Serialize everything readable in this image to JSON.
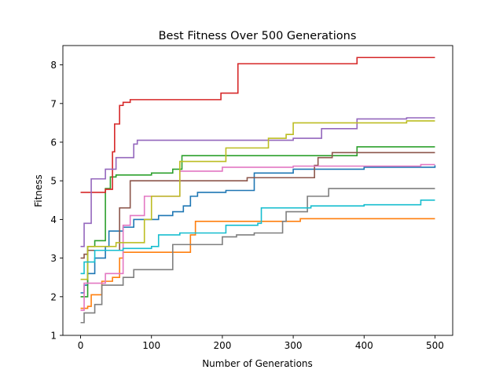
{
  "chart_data": {
    "type": "line",
    "title": "Best Fitness Over 500 Generations",
    "xlabel": "Number of Generations",
    "ylabel": "Fitness",
    "xlim": [
      -25,
      525
    ],
    "ylim": [
      1,
      8.5
    ],
    "xticks": [
      0,
      100,
      200,
      300,
      400,
      500
    ],
    "yticks": [
      1,
      2,
      3,
      4,
      5,
      6,
      7,
      8
    ],
    "grid": false,
    "legend": "none",
    "step": "post",
    "series": [
      {
        "color": "#1f77b4",
        "points": [
          [
            0,
            2.1
          ],
          [
            5,
            2.3
          ],
          [
            10,
            2.6
          ],
          [
            20,
            3.0
          ],
          [
            35,
            3.3
          ],
          [
            40,
            3.7
          ],
          [
            60,
            3.8
          ],
          [
            75,
            4.0
          ],
          [
            110,
            4.1
          ],
          [
            130,
            4.2
          ],
          [
            145,
            4.35
          ],
          [
            155,
            4.6
          ],
          [
            165,
            4.7
          ],
          [
            205,
            4.75
          ],
          [
            245,
            5.2
          ],
          [
            300,
            5.3
          ],
          [
            400,
            5.35
          ],
          [
            500,
            5.4
          ]
        ]
      },
      {
        "color": "#ff7f0e",
        "points": [
          [
            0,
            1.7
          ],
          [
            10,
            1.75
          ],
          [
            15,
            2.05
          ],
          [
            30,
            2.4
          ],
          [
            45,
            2.5
          ],
          [
            55,
            3.0
          ],
          [
            60,
            3.15
          ],
          [
            100,
            3.15
          ],
          [
            155,
            3.6
          ],
          [
            162,
            3.95
          ],
          [
            300,
            3.95
          ],
          [
            310,
            4.02
          ],
          [
            400,
            4.02
          ],
          [
            500,
            4.02
          ]
        ]
      },
      {
        "color": "#2ca02c",
        "points": [
          [
            0,
            2.0
          ],
          [
            10,
            3.3
          ],
          [
            20,
            3.45
          ],
          [
            35,
            4.8
          ],
          [
            40,
            4.8
          ],
          [
            42,
            5.1
          ],
          [
            50,
            5.15
          ],
          [
            100,
            5.2
          ],
          [
            130,
            5.3
          ],
          [
            143,
            5.65
          ],
          [
            390,
            5.88
          ],
          [
            500,
            5.88
          ]
        ]
      },
      {
        "color": "#d62728",
        "points": [
          [
            0,
            4.7
          ],
          [
            35,
            4.78
          ],
          [
            45,
            5.75
          ],
          [
            48,
            6.47
          ],
          [
            55,
            6.95
          ],
          [
            60,
            7.03
          ],
          [
            70,
            7.1
          ],
          [
            195,
            7.1
          ],
          [
            198,
            7.27
          ],
          [
            222,
            8.03
          ],
          [
            390,
            8.19
          ],
          [
            500,
            8.19
          ]
        ]
      },
      {
        "color": "#9467bd",
        "points": [
          [
            0,
            3.3
          ],
          [
            5,
            3.9
          ],
          [
            15,
            5.05
          ],
          [
            35,
            5.3
          ],
          [
            50,
            5.6
          ],
          [
            75,
            5.95
          ],
          [
            80,
            6.05
          ],
          [
            140,
            6.05
          ],
          [
            300,
            6.1
          ],
          [
            340,
            6.35
          ],
          [
            390,
            6.6
          ],
          [
            460,
            6.63
          ],
          [
            500,
            6.63
          ]
        ]
      },
      {
        "color": "#8c564b",
        "points": [
          [
            0,
            3.0
          ],
          [
            5,
            3.1
          ],
          [
            10,
            3.2
          ],
          [
            30,
            3.2
          ],
          [
            55,
            4.3
          ],
          [
            65,
            4.3
          ],
          [
            70,
            5.0
          ],
          [
            130,
            5.0
          ],
          [
            235,
            5.08
          ],
          [
            330,
            5.4
          ],
          [
            335,
            5.6
          ],
          [
            355,
            5.73
          ],
          [
            500,
            5.73
          ]
        ]
      },
      {
        "color": "#e377c2",
        "points": [
          [
            0,
            1.65
          ],
          [
            5,
            2.35
          ],
          [
            25,
            2.35
          ],
          [
            35,
            2.6
          ],
          [
            60,
            3.85
          ],
          [
            70,
            4.1
          ],
          [
            90,
            4.6
          ],
          [
            110,
            4.6
          ],
          [
            130,
            4.6
          ],
          [
            140,
            5.25
          ],
          [
            200,
            5.35
          ],
          [
            300,
            5.38
          ],
          [
            480,
            5.42
          ],
          [
            500,
            5.42
          ]
        ]
      },
      {
        "color": "#7f7f7f",
        "points": [
          [
            0,
            1.33
          ],
          [
            5,
            1.58
          ],
          [
            15,
            1.58
          ],
          [
            20,
            1.8
          ],
          [
            30,
            2.3
          ],
          [
            60,
            2.5
          ],
          [
            75,
            2.7
          ],
          [
            130,
            3.35
          ],
          [
            200,
            3.55
          ],
          [
            220,
            3.6
          ],
          [
            245,
            3.65
          ],
          [
            285,
            3.95
          ],
          [
            290,
            4.2
          ],
          [
            320,
            4.6
          ],
          [
            350,
            4.8
          ],
          [
            500,
            4.8
          ]
        ]
      },
      {
        "color": "#bcbd22",
        "points": [
          [
            0,
            2.45
          ],
          [
            10,
            3.3
          ],
          [
            50,
            3.4
          ],
          [
            90,
            4.0
          ],
          [
            100,
            4.6
          ],
          [
            140,
            5.5
          ],
          [
            205,
            5.85
          ],
          [
            265,
            6.1
          ],
          [
            290,
            6.2
          ],
          [
            300,
            6.5
          ],
          [
            460,
            6.55
          ],
          [
            500,
            6.55
          ]
        ]
      },
      {
        "color": "#17becf",
        "points": [
          [
            0,
            2.6
          ],
          [
            5,
            2.9
          ],
          [
            20,
            3.2
          ],
          [
            60,
            3.25
          ],
          [
            100,
            3.3
          ],
          [
            110,
            3.6
          ],
          [
            140,
            3.65
          ],
          [
            205,
            3.85
          ],
          [
            250,
            3.9
          ],
          [
            255,
            4.3
          ],
          [
            325,
            4.35
          ],
          [
            400,
            4.38
          ],
          [
            480,
            4.5
          ],
          [
            500,
            4.5
          ]
        ]
      }
    ]
  }
}
